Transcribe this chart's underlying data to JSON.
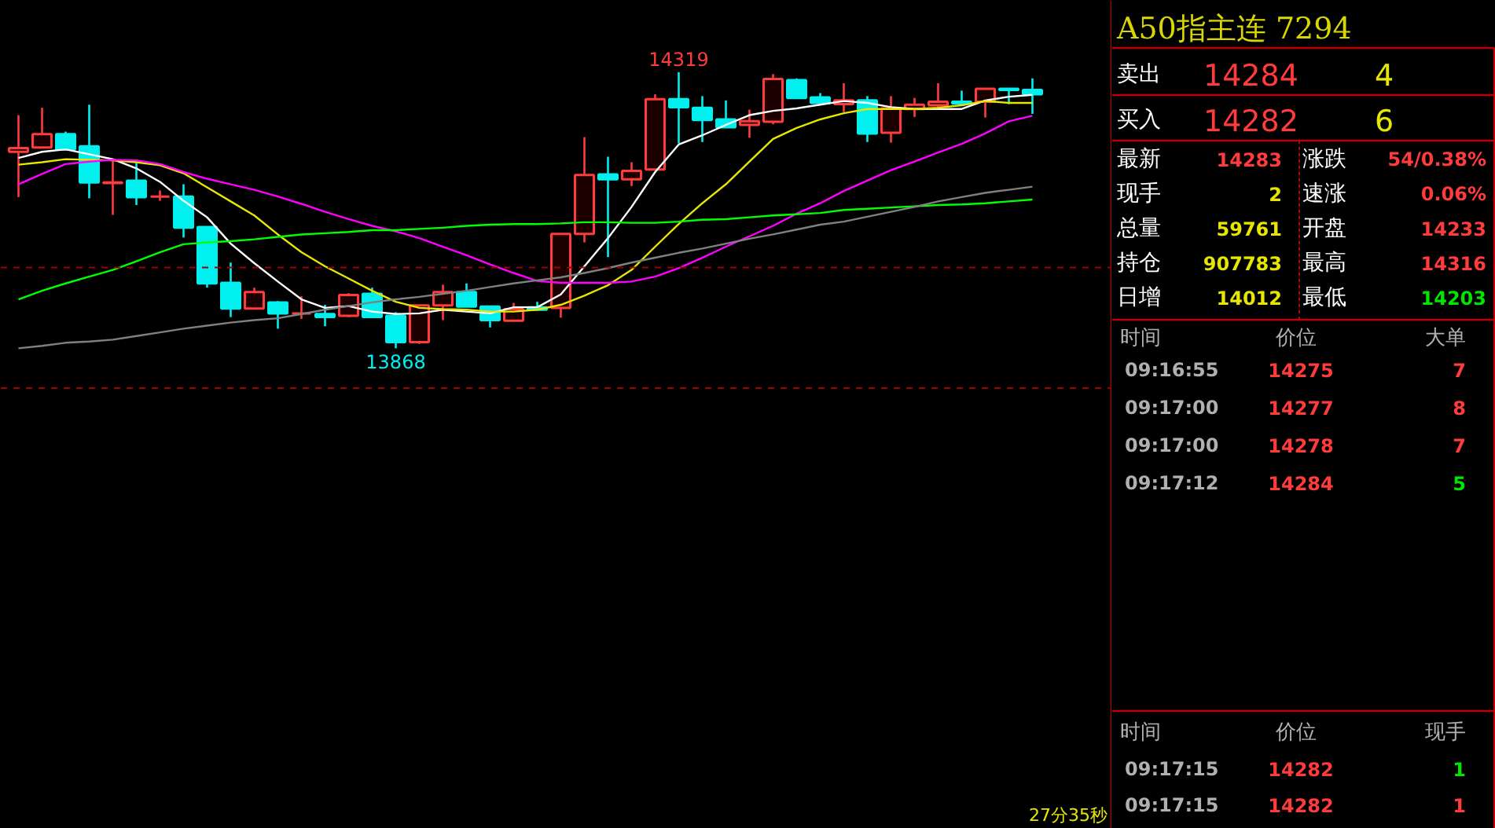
{
  "chart_data": [
    {
      "type": "candlestick",
      "categories": [
        null,
        null,
        null,
        null,
        null,
        null,
        null,
        null,
        null,
        null,
        null,
        null,
        null,
        null,
        null,
        null,
        null,
        null,
        null,
        null,
        null,
        null,
        null,
        null,
        null,
        null,
        null,
        null,
        null,
        null,
        null,
        null,
        null,
        null,
        null,
        null,
        null,
        null,
        null,
        null,
        null,
        null,
        null,
        null
      ],
      "ohlc": [
        [
          14189,
          14249,
          14115,
          14195
        ],
        [
          14196,
          14261,
          14196,
          14218
        ],
        [
          14218,
          14222,
          14193,
          14193
        ],
        [
          14198,
          14266,
          14113,
          14139
        ],
        [
          14138,
          14174,
          14086,
          14139
        ],
        [
          14142,
          14171,
          14102,
          14115
        ],
        [
          14116,
          14126,
          14109,
          14116
        ],
        [
          14116,
          14136,
          14049,
          14065
        ],
        [
          14066,
          14066,
          13967,
          13974
        ],
        [
          13975,
          14008,
          13919,
          13933
        ],
        [
          13933,
          13967,
          13933,
          13960
        ],
        [
          13943,
          13945,
          13900,
          13925
        ],
        [
          13925,
          13953,
          13916,
          13925
        ],
        [
          13924,
          13939,
          13904,
          13919
        ],
        [
          13921,
          13958,
          13919,
          13955
        ],
        [
          13957,
          13967,
          13919,
          13919
        ],
        [
          13921,
          13927,
          13868,
          13878
        ],
        [
          13878,
          13939,
          13875,
          13938
        ],
        [
          13938,
          13972,
          13914,
          13960
        ],
        [
          13960,
          13974,
          13936,
          13936
        ],
        [
          13936,
          13936,
          13902,
          13914
        ],
        [
          13913,
          13942,
          13913,
          13932
        ],
        [
          13935,
          13944,
          13931,
          13931
        ],
        [
          13934,
          14055,
          13918,
          14055
        ],
        [
          14055,
          14213,
          14041,
          14151
        ],
        [
          14152,
          14181,
          14017,
          14144
        ],
        [
          14144,
          14172,
          14133,
          14158
        ],
        [
          14160,
          14283,
          14160,
          14275
        ],
        [
          14275,
          14319,
          14203,
          14262
        ],
        [
          14261,
          14280,
          14205,
          14241
        ],
        [
          14242,
          14273,
          14229,
          14229
        ],
        [
          14233,
          14258,
          14212,
          14239
        ],
        [
          14238,
          14316,
          14234,
          14308
        ],
        [
          14306,
          14309,
          14276,
          14277
        ],
        [
          14278,
          14285,
          14265,
          14269
        ],
        [
          14267,
          14301,
          14254,
          14273
        ],
        [
          14273,
          14280,
          14205,
          14219
        ],
        [
          14220,
          14280,
          14204,
          14260
        ],
        [
          14259,
          14277,
          14246,
          14266
        ],
        [
          14265,
          14301,
          14261,
          14271
        ],
        [
          14271,
          14289,
          14264,
          14268
        ],
        [
          14271,
          14292,
          14245,
          14292
        ],
        [
          14292,
          14292,
          14267,
          14290
        ],
        [
          14290,
          14309,
          14251,
          14283
        ]
      ],
      "series": [
        {
          "type": "line",
          "color": "#ffffff",
          "values": [
            14179,
            14189,
            14193,
            14185,
            14177,
            14162,
            14140,
            14109,
            14082,
            14039,
            14007,
            13977,
            13948,
            13934,
            13937,
            13928,
            13924,
            13925,
            13931,
            13928,
            13925,
            13935,
            13935,
            13956,
            14002,
            14048,
            14099,
            14156,
            14201,
            14216,
            14233,
            14249,
            14256,
            14260,
            14266,
            14272,
            14269,
            14262,
            14259,
            14259,
            14259,
            14273,
            14279,
            14282
          ]
        },
        {
          "type": "line",
          "color": "#e6e600",
          "values": [
            14168,
            14172,
            14177,
            14176,
            14175,
            14172,
            14167,
            14154,
            14131,
            14108,
            14085,
            14054,
            14025,
            14002,
            13982,
            13962,
            13944,
            13934,
            13932,
            13931,
            13928,
            13928,
            13931,
            13939,
            13954,
            13971,
            13996,
            14034,
            14071,
            14105,
            14136,
            14173,
            14210,
            14228,
            14242,
            14252,
            14259,
            14259,
            14259,
            14261,
            14265,
            14272,
            14269,
            14269
          ]
        },
        {
          "type": "line",
          "color": "#ff00ff",
          "values": [
            14136,
            14153,
            14169,
            14173,
            14176,
            14175,
            14169,
            14156,
            14145,
            14136,
            14127,
            14116,
            14104,
            14091,
            14079,
            14068,
            14059,
            14048,
            14034,
            14020,
            14005,
            13991,
            13978,
            13975,
            13975,
            13975,
            13977,
            13985,
            13999,
            14016,
            14034,
            14051,
            14068,
            14088,
            14105,
            14125,
            14142,
            14159,
            14173,
            14188,
            14202,
            14219,
            14239,
            14248
          ]
        },
        {
          "type": "line",
          "color": "#00ff00",
          "values": [
            13948,
            13962,
            13974,
            13985,
            13996,
            14010,
            14025,
            14038,
            14041,
            14043,
            14046,
            14050,
            14054,
            14056,
            14058,
            14061,
            14061,
            14063,
            14065,
            14068,
            14070,
            14071,
            14071,
            14072,
            14074,
            14074,
            14073,
            14073,
            14075,
            14078,
            14079,
            14082,
            14085,
            14087,
            14089,
            14094,
            14096,
            14098,
            14100,
            14102,
            14103,
            14105,
            14108,
            14111
          ]
        },
        {
          "type": "line",
          "color": "#808080",
          "values": [
            13868,
            13872,
            13877,
            13879,
            13882,
            13888,
            13894,
            13900,
            13905,
            13910,
            13914,
            13917,
            13924,
            13931,
            13937,
            13943,
            13948,
            13952,
            13957,
            13962,
            13968,
            13974,
            13979,
            13984,
            13991,
            13999,
            14008,
            14016,
            14024,
            14031,
            14039,
            14047,
            14054,
            14062,
            14070,
            14075,
            14083,
            14091,
            14099,
            14108,
            14115,
            14122,
            14127,
            14132
          ]
        }
      ],
      "ref_lines": [
        {
          "axis": "y",
          "value": 14000,
          "color": "#a00000",
          "line_style": "dashed"
        },
        {
          "axis": "y",
          "value": 13803,
          "color": "#a00000",
          "line_style": "dashed"
        }
      ],
      "annotations": [
        {
          "text": "14319",
          "y": 14319
        },
        {
          "text": "13868",
          "y": 13868
        },
        "27分35秒"
      ]
    },
    {
      "type": "other",
      "title": "A50指主连 7294",
      "annotations": [
        "卖出",
        "14284",
        "4",
        "买入",
        "14282",
        "6",
        "最新",
        "14283",
        "涨跌",
        "54/0.38%",
        "现手",
        "2",
        "速涨",
        "0.06%",
        "总量",
        "59761",
        "开盘",
        "14233",
        "持仓",
        "907783",
        "最高",
        "14316",
        "日增",
        "14012",
        "最低",
        "14203",
        "时间",
        "价位",
        "大单",
        "09:16:55",
        "14275",
        "7",
        "09:17:00",
        "14277",
        "8",
        "09:17:00",
        "14278",
        "7",
        "09:17:12",
        "14284",
        "5",
        "时间",
        "价位",
        "现手",
        "09:17:15",
        "14282",
        "1",
        "09:17:15",
        "14282",
        "1"
      ]
    }
  ]
}
